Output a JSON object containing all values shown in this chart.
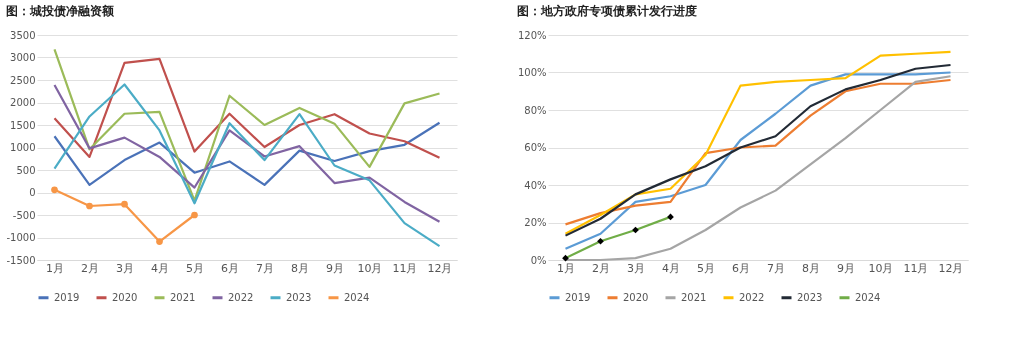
{
  "chart_data": [
    {
      "type": "line",
      "title": "图：城投债净融资额",
      "categories": [
        "1月",
        "2月",
        "3月",
        "4月",
        "5月",
        "6月",
        "7月",
        "8月",
        "9月",
        "10月",
        "11月",
        "12月"
      ],
      "series": [
        {
          "name": "2019",
          "color": "#4a72b8",
          "values": [
            1250,
            170,
            720,
            1110,
            440,
            690,
            170,
            930,
            700,
            920,
            1060,
            1550
          ]
        },
        {
          "name": "2020",
          "color": "#c0504d",
          "values": [
            1650,
            790,
            2880,
            2970,
            910,
            1750,
            1010,
            1500,
            1740,
            1310,
            1140,
            770
          ]
        },
        {
          "name": "2021",
          "color": "#9bbb59",
          "values": [
            3180,
            960,
            1750,
            1790,
            -180,
            2150,
            1500,
            1880,
            1530,
            570,
            1980,
            2200
          ]
        },
        {
          "name": "2022",
          "color": "#8064a2",
          "values": [
            2390,
            980,
            1220,
            790,
            110,
            1380,
            800,
            1030,
            210,
            330,
            -210,
            -650
          ]
        },
        {
          "name": "2023",
          "color": "#4bacc6",
          "values": [
            530,
            1690,
            2400,
            1380,
            -240,
            1540,
            720,
            1740,
            600,
            270,
            -680,
            -1190
          ]
        },
        {
          "name": "2024",
          "color": "#f79646",
          "marker": "circle",
          "values": [
            60,
            -300,
            -260,
            -1090,
            -500,
            null,
            null,
            null,
            null,
            null,
            null,
            null
          ]
        }
      ],
      "ylim": [
        -1500,
        3500
      ],
      "yticks": [
        -1500,
        -1000,
        -500,
        0,
        500,
        1000,
        1500,
        2000,
        2500,
        3000,
        3500
      ],
      "grid": "y",
      "legend": "bottom"
    },
    {
      "type": "line",
      "title": "图：地方政府专项债累计发行进度",
      "categories": [
        "1月",
        "2月",
        "3月",
        "4月",
        "5月",
        "6月",
        "7月",
        "8月",
        "9月",
        "10月",
        "11月",
        "12月"
      ],
      "series": [
        {
          "name": "2019",
          "color": "#5b9bd5",
          "values": [
            6,
            14,
            31,
            34,
            40,
            64,
            78,
            93,
            99,
            99,
            99,
            100
          ]
        },
        {
          "name": "2020",
          "color": "#ed7d31",
          "values": [
            19,
            25,
            29,
            31,
            57,
            60,
            61,
            77,
            90,
            94,
            94,
            96
          ]
        },
        {
          "name": "2021",
          "color": "#a5a5a5",
          "values": [
            0,
            0,
            1,
            6,
            16,
            28,
            37,
            51,
            65,
            80,
            95,
            98
          ]
        },
        {
          "name": "2022",
          "color": "#ffc000",
          "values": [
            14,
            24,
            35,
            38,
            56,
            93,
            95,
            96,
            97,
            109,
            110,
            111
          ]
        },
        {
          "name": "2023",
          "color": "#222a35",
          "values": [
            13,
            22,
            35,
            43,
            50,
            60,
            66,
            82,
            91,
            96,
            102,
            104
          ]
        },
        {
          "name": "2024",
          "color": "#70ad47",
          "marker": "diamond",
          "values": [
            1,
            10,
            16,
            23,
            null,
            null,
            null,
            null,
            null,
            null,
            null,
            null
          ]
        }
      ],
      "ylim": [
        0,
        120
      ],
      "yticks": [
        {
          "value": 0,
          "label": "0%"
        },
        {
          "value": 20,
          "label": "20%"
        },
        {
          "value": 40,
          "label": "40%"
        },
        {
          "value": 60,
          "label": "60%"
        },
        {
          "value": 80,
          "label": "80%"
        },
        {
          "value": 100,
          "label": "100%"
        },
        {
          "value": 120,
          "label": "120%"
        }
      ],
      "grid": "y",
      "legend": "bottom"
    }
  ]
}
